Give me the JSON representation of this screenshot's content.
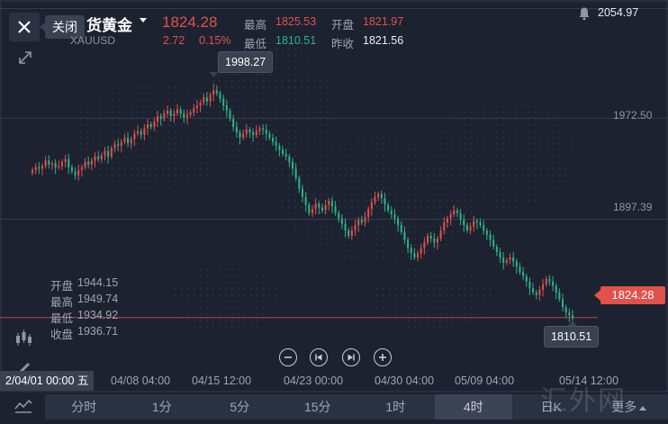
{
  "header": {
    "close_tooltip": "关闭",
    "instrument_name": "货黄金",
    "instrument_code": "XAUUSD",
    "last_price": "1824.28",
    "change": "2.72",
    "change_pct": "0.15%",
    "high_label": "最高",
    "high_value": "1825.53",
    "open_label": "开盘",
    "open_value": "1821.97",
    "low_label": "最低",
    "low_value": "1810.51",
    "prev_close_label": "昨收",
    "prev_close_value": "1821.56",
    "top_right_price": "2054.97"
  },
  "info_box": {
    "open_label": "开盘",
    "open_value": "1944.15",
    "high_label": "最高",
    "high_value": "1949.74",
    "low_label": "最低",
    "low_value": "1934.92",
    "close_label": "收盘",
    "close_value": "1936.71"
  },
  "callouts": {
    "max": "1998.27",
    "min": "1810.51",
    "current": "1824.28"
  },
  "crosshair_date": "2/04/01 00:00 五",
  "periods": [
    "分时",
    "1分",
    "5分",
    "15分",
    "1时",
    "4时",
    "日K",
    "更多"
  ],
  "active_period": "4时",
  "watermark": "汇外网",
  "colors": {
    "up": "#e2514a",
    "down": "#2fb38a",
    "background": "#1c2230"
  },
  "chart_data": {
    "type": "candlestick",
    "title": "",
    "xlabel": "",
    "ylabel": "",
    "y_tick_labels": [
      "1972.50",
      "1897.39"
    ],
    "x_tick_labels": [
      "04/08 04:00",
      "04/15 12:00",
      "04/23 00:00",
      "04/30 04:00",
      "05/09 04:00",
      "05/14 12:00"
    ],
    "ylim": [
      1786,
      2055
    ],
    "grid": true,
    "closes": [
      1934,
      1936,
      1935,
      1937,
      1941,
      1938,
      1939,
      1936,
      1937,
      1940,
      1942,
      1936,
      1933,
      1930,
      1934,
      1936,
      1940,
      1938,
      1941,
      1944,
      1942,
      1945,
      1948,
      1944,
      1950,
      1953,
      1952,
      1955,
      1958,
      1954,
      1957,
      1961,
      1963,
      1960,
      1965,
      1968,
      1966,
      1970,
      1974,
      1972,
      1976,
      1978,
      1974,
      1976,
      1979,
      1976,
      1973,
      1975,
      1977,
      1980,
      1982,
      1984,
      1988,
      1985,
      1990,
      1993,
      1991,
      1987,
      1982,
      1978,
      1972,
      1966,
      1962,
      1958,
      1961,
      1964,
      1962,
      1960,
      1963,
      1965,
      1964,
      1961,
      1958,
      1955,
      1952,
      1949,
      1946,
      1944,
      1940,
      1935,
      1928,
      1920,
      1914,
      1908,
      1902,
      1905,
      1909,
      1906,
      1904,
      1908,
      1911,
      1907,
      1902,
      1898,
      1894,
      1889,
      1885,
      1889,
      1893,
      1897,
      1895,
      1899,
      1905,
      1910,
      1914,
      1916,
      1913,
      1908,
      1904,
      1901,
      1898,
      1893,
      1888,
      1882,
      1876,
      1872,
      1869,
      1872,
      1876,
      1880,
      1885,
      1883,
      1880,
      1883,
      1889,
      1895,
      1898,
      1901,
      1904,
      1902,
      1897,
      1893,
      1889,
      1892,
      1896,
      1895,
      1893,
      1889,
      1886,
      1882,
      1877,
      1873,
      1869,
      1865,
      1867,
      1869,
      1866,
      1862,
      1858,
      1855,
      1851,
      1846,
      1843,
      1841,
      1845,
      1849,
      1853,
      1851,
      1848,
      1843,
      1838,
      1832,
      1828,
      1826,
      1824
    ],
    "max_value": 1998.27,
    "min_value": 1810.51,
    "last_value": 1824.28
  }
}
